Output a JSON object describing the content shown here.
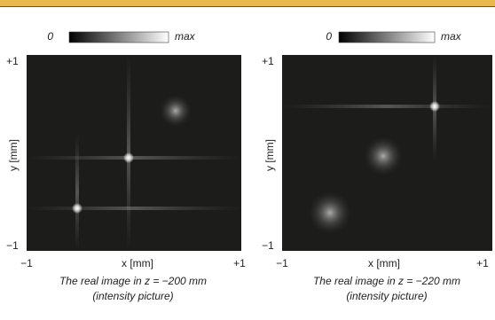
{
  "panels": [
    {
      "colorbar": {
        "min": "0",
        "max": "max"
      },
      "y_ticks": [
        "+1",
        "−1"
      ],
      "x_ticks": [
        "−1",
        "+1"
      ],
      "x_label": "x [mm]",
      "y_label": "y [mm]",
      "caption": [
        "The real image in z = −200 mm",
        "(intensity picture)"
      ]
    },
    {
      "colorbar": {
        "min": "0",
        "max": "max"
      },
      "y_ticks": [
        "+1",
        "−1"
      ],
      "x_ticks": [
        "−1",
        "+1"
      ],
      "x_label": "x [mm]",
      "y_label": "y [mm]",
      "caption": [
        "The real image in z = −220 mm",
        "(intensity picture)"
      ]
    }
  ]
}
